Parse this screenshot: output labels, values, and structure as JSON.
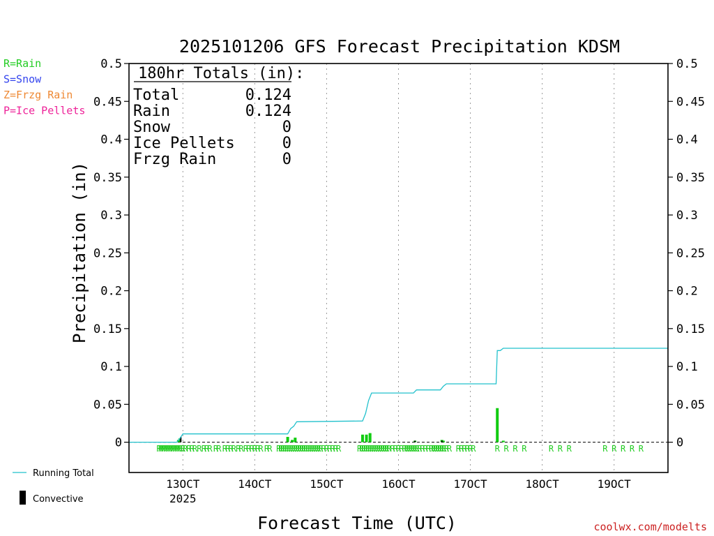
{
  "chart_data": {
    "type": "bar",
    "title": "2025101206 GFS Forecast Precipitation KDSM",
    "xlabel": "Forecast Time (UTC)",
    "ylabel": "Precipitation (in)",
    "ylim": [
      -0.04,
      0.5
    ],
    "xlim_hours": [
      0,
      180
    ],
    "yticks": [
      0,
      0.05,
      0.1,
      0.15,
      0.2,
      0.25,
      0.3,
      0.35,
      0.4,
      0.45,
      0.5
    ],
    "ytick_labels": [
      "0",
      "0.05",
      "0.1",
      "0.15",
      "0.2",
      "0.25",
      "0.3",
      "0.35",
      "0.4",
      "0.45",
      "0.5"
    ],
    "xticks": [
      {
        "hour": 18,
        "label": "13OCT",
        "sublabel": "2025"
      },
      {
        "hour": 42,
        "label": "14OCT"
      },
      {
        "hour": 66,
        "label": "15OCT"
      },
      {
        "hour": 90,
        "label": "16OCT"
      },
      {
        "hour": 114,
        "label": "17OCT"
      },
      {
        "hour": 138,
        "label": "18OCT"
      },
      {
        "hour": 162,
        "label": "19OCT"
      }
    ],
    "legend_left": [
      {
        "text": "R=Rain",
        "color": "#22cc22"
      },
      {
        "text": "S=Snow",
        "color": "#3344ee"
      },
      {
        "text": "Z=Frzg Rain",
        "color": "#ee8833"
      },
      {
        "text": "P=Ice Pellets",
        "color": "#ee2299"
      }
    ],
    "legend_bottom": {
      "running_total": "Running Total",
      "convective": "Convective"
    },
    "totals": {
      "header": "180hr Totals (in):",
      "rows": [
        {
          "label": "Total",
          "value": "0.124"
        },
        {
          "label": "Rain",
          "value": "0.124"
        },
        {
          "label": "Snow",
          "value": "0"
        },
        {
          "label": "Ice Pellets",
          "value": "0"
        },
        {
          "label": "Frzg Rain",
          "value": "0"
        }
      ]
    },
    "precip_bars": [
      {
        "hour": 16.5,
        "value": 0.003
      },
      {
        "hour": 17.0,
        "value": 0.005
      },
      {
        "hour": 53.0,
        "value": 0.007
      },
      {
        "hour": 54.5,
        "value": 0.003
      },
      {
        "hour": 55.5,
        "value": 0.006
      },
      {
        "hour": 78.0,
        "value": 0.01
      },
      {
        "hour": 79.3,
        "value": 0.01
      },
      {
        "hour": 80.5,
        "value": 0.012
      },
      {
        "hour": 95.5,
        "value": 0.002
      },
      {
        "hour": 104.5,
        "value": 0.003
      },
      {
        "hour": 105.0,
        "value": 0.002
      },
      {
        "hour": 123.0,
        "value": 0.045
      },
      {
        "hour": 125.0,
        "value": 0.002
      }
    ],
    "convective_bars": [
      {
        "hour": 17.3,
        "value": 0.007
      },
      {
        "hour": 95.5,
        "value": 0.002
      },
      {
        "hour": 104.5,
        "value": 0.002
      }
    ],
    "running_total": {
      "hours": [
        0,
        16,
        17,
        18,
        53,
        54,
        55,
        56,
        78,
        79,
        80,
        81,
        95,
        96,
        104,
        105,
        106,
        122.6,
        123,
        124,
        125,
        126,
        180
      ],
      "values": [
        0,
        0,
        0.005,
        0.011,
        0.011,
        0.018,
        0.021,
        0.027,
        0.028,
        0.038,
        0.055,
        0.065,
        0.065,
        0.069,
        0.069,
        0.074,
        0.077,
        0.077,
        0.121,
        0.121,
        0.124,
        0.124,
        0.124
      ]
    },
    "precip_type_marks": {
      "symbol": "R",
      "hours": [
        10,
        10.6,
        11.2,
        11.8,
        12.4,
        13,
        13.6,
        14.2,
        14.8,
        15.4,
        16,
        16.6,
        17.2,
        18,
        18.8,
        20,
        21,
        22,
        23.5,
        25,
        26,
        27,
        29,
        30,
        32,
        33,
        34,
        35,
        36.5,
        37.5,
        39,
        40,
        41,
        42,
        43,
        44,
        46,
        47,
        50,
        50.7,
        51.4,
        52.1,
        52.8,
        53.5,
        54.2,
        54.9,
        55.6,
        56.3,
        57,
        57.7,
        58.4,
        59.1,
        59.8,
        60.5,
        61.2,
        61.9,
        62.6,
        63.3,
        64,
        65,
        66,
        67,
        68,
        69,
        70,
        77,
        77.7,
        78.4,
        79.1,
        79.8,
        80.5,
        81.2,
        81.9,
        82.6,
        83.3,
        84,
        84.7,
        85.4,
        86.1,
        86.8,
        88,
        89,
        90,
        91,
        92,
        92.7,
        93.4,
        94.1,
        94.8,
        95.5,
        96.2,
        97,
        98,
        99,
        100,
        101,
        101.7,
        102.4,
        103.1,
        103.8,
        104.5,
        105.2,
        106,
        107,
        110,
        111,
        112,
        113,
        114,
        115,
        123,
        126,
        129,
        132,
        141,
        144,
        147,
        159,
        162,
        165,
        168,
        171
      ]
    },
    "credit": "coolwx.com/modelts"
  }
}
